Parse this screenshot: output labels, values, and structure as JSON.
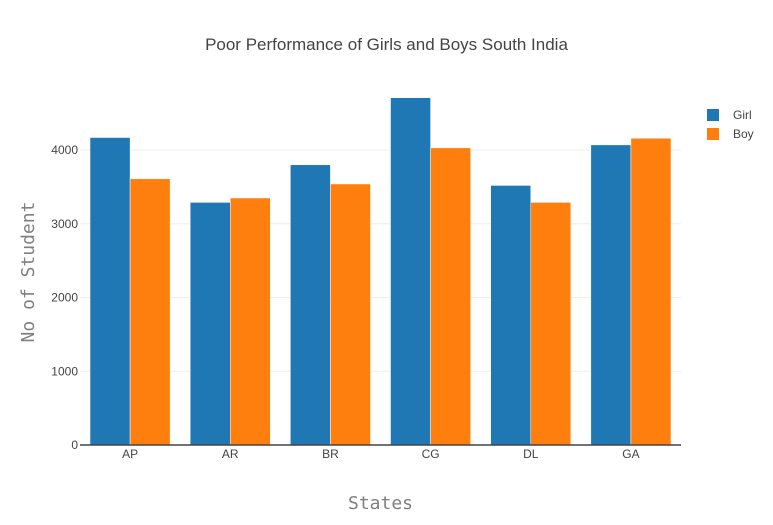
{
  "chart_data": {
    "type": "bar",
    "title": "Poor Performance of Girls and Boys South India",
    "xlabel": "States",
    "ylabel": "No of Student",
    "categories": [
      "AP",
      "AR",
      "BR",
      "CG",
      "DL",
      "GA"
    ],
    "series": [
      {
        "name": "Girl",
        "color": "#1f77b4",
        "values": [
          4170,
          3290,
          3800,
          4710,
          3520,
          4070
        ]
      },
      {
        "name": "Boy",
        "color": "#ff7f0e",
        "values": [
          3610,
          3350,
          3540,
          4030,
          3290,
          4160
        ]
      }
    ],
    "ylim": [
      0,
      4950
    ],
    "yticks": [
      0,
      1000,
      2000,
      3000,
      4000
    ],
    "grid": true,
    "legend_position": "top-right"
  }
}
